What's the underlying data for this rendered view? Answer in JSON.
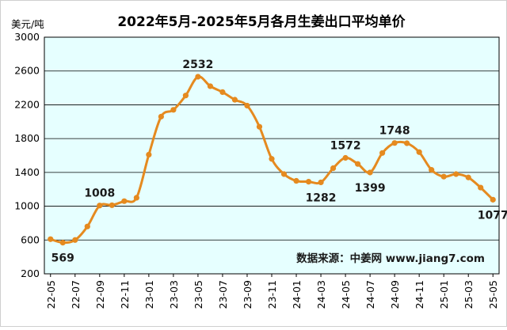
{
  "chart_data": {
    "type": "line",
    "title": "2022年5月-2025年5月各月生姜出口平均单价",
    "ylabel": "美元/吨",
    "ylim": [
      200,
      3000
    ],
    "yticks": [
      "200",
      "600",
      "1000",
      "1400",
      "1800",
      "2200",
      "2600",
      "3000"
    ],
    "x_tick_labels": [
      "22-05",
      "22-07",
      "22-09",
      "22-11",
      "23-01",
      "23-03",
      "23-05",
      "23-07",
      "23-09",
      "23-11",
      "24-01",
      "24-03",
      "24-05",
      "24-07",
      "24-09",
      "24-11",
      "25-01",
      "25-03",
      "25-05"
    ],
    "grid": true,
    "source": "数据来源：中姜网 www.jiang7.com",
    "colors": {
      "line": "#e58a1f",
      "plot_bg": "#e6ffff",
      "grid": "#000000"
    },
    "series": [
      {
        "x": [
          "22-05",
          "22-06",
          "22-07",
          "22-08",
          "22-09",
          "22-10",
          "22-11",
          "22-12",
          "23-01",
          "23-02",
          "23-03",
          "23-04",
          "23-05",
          "23-06",
          "23-07",
          "23-08",
          "23-09",
          "23-10",
          "23-11",
          "23-12",
          "24-01",
          "24-02",
          "24-03",
          "24-04",
          "24-05",
          "24-06",
          "24-07",
          "24-08",
          "24-09",
          "24-10",
          "24-11",
          "24-12",
          "25-01",
          "25-02",
          "25-03",
          "25-04",
          "25-05"
        ],
        "values": [
          610,
          569,
          600,
          760,
          1008,
          1012,
          1060,
          1100,
          1610,
          2060,
          2140,
          2310,
          2532,
          2420,
          2350,
          2260,
          2190,
          1940,
          1560,
          1380,
          1300,
          1290,
          1282,
          1450,
          1572,
          1500,
          1399,
          1630,
          1748,
          1745,
          1640,
          1430,
          1350,
          1380,
          1340,
          1220,
          1077
        ]
      }
    ],
    "data_labels": [
      {
        "index": 1,
        "text": "569",
        "pos": "below"
      },
      {
        "index": 4,
        "text": "1008",
        "pos": "above"
      },
      {
        "index": 12,
        "text": "2532",
        "pos": "above"
      },
      {
        "index": 22,
        "text": "1282",
        "pos": "below"
      },
      {
        "index": 24,
        "text": "1572",
        "pos": "above"
      },
      {
        "index": 26,
        "text": "1399",
        "pos": "below"
      },
      {
        "index": 28,
        "text": "1748",
        "pos": "above"
      },
      {
        "index": 36,
        "text": "1077",
        "pos": "below"
      }
    ]
  }
}
